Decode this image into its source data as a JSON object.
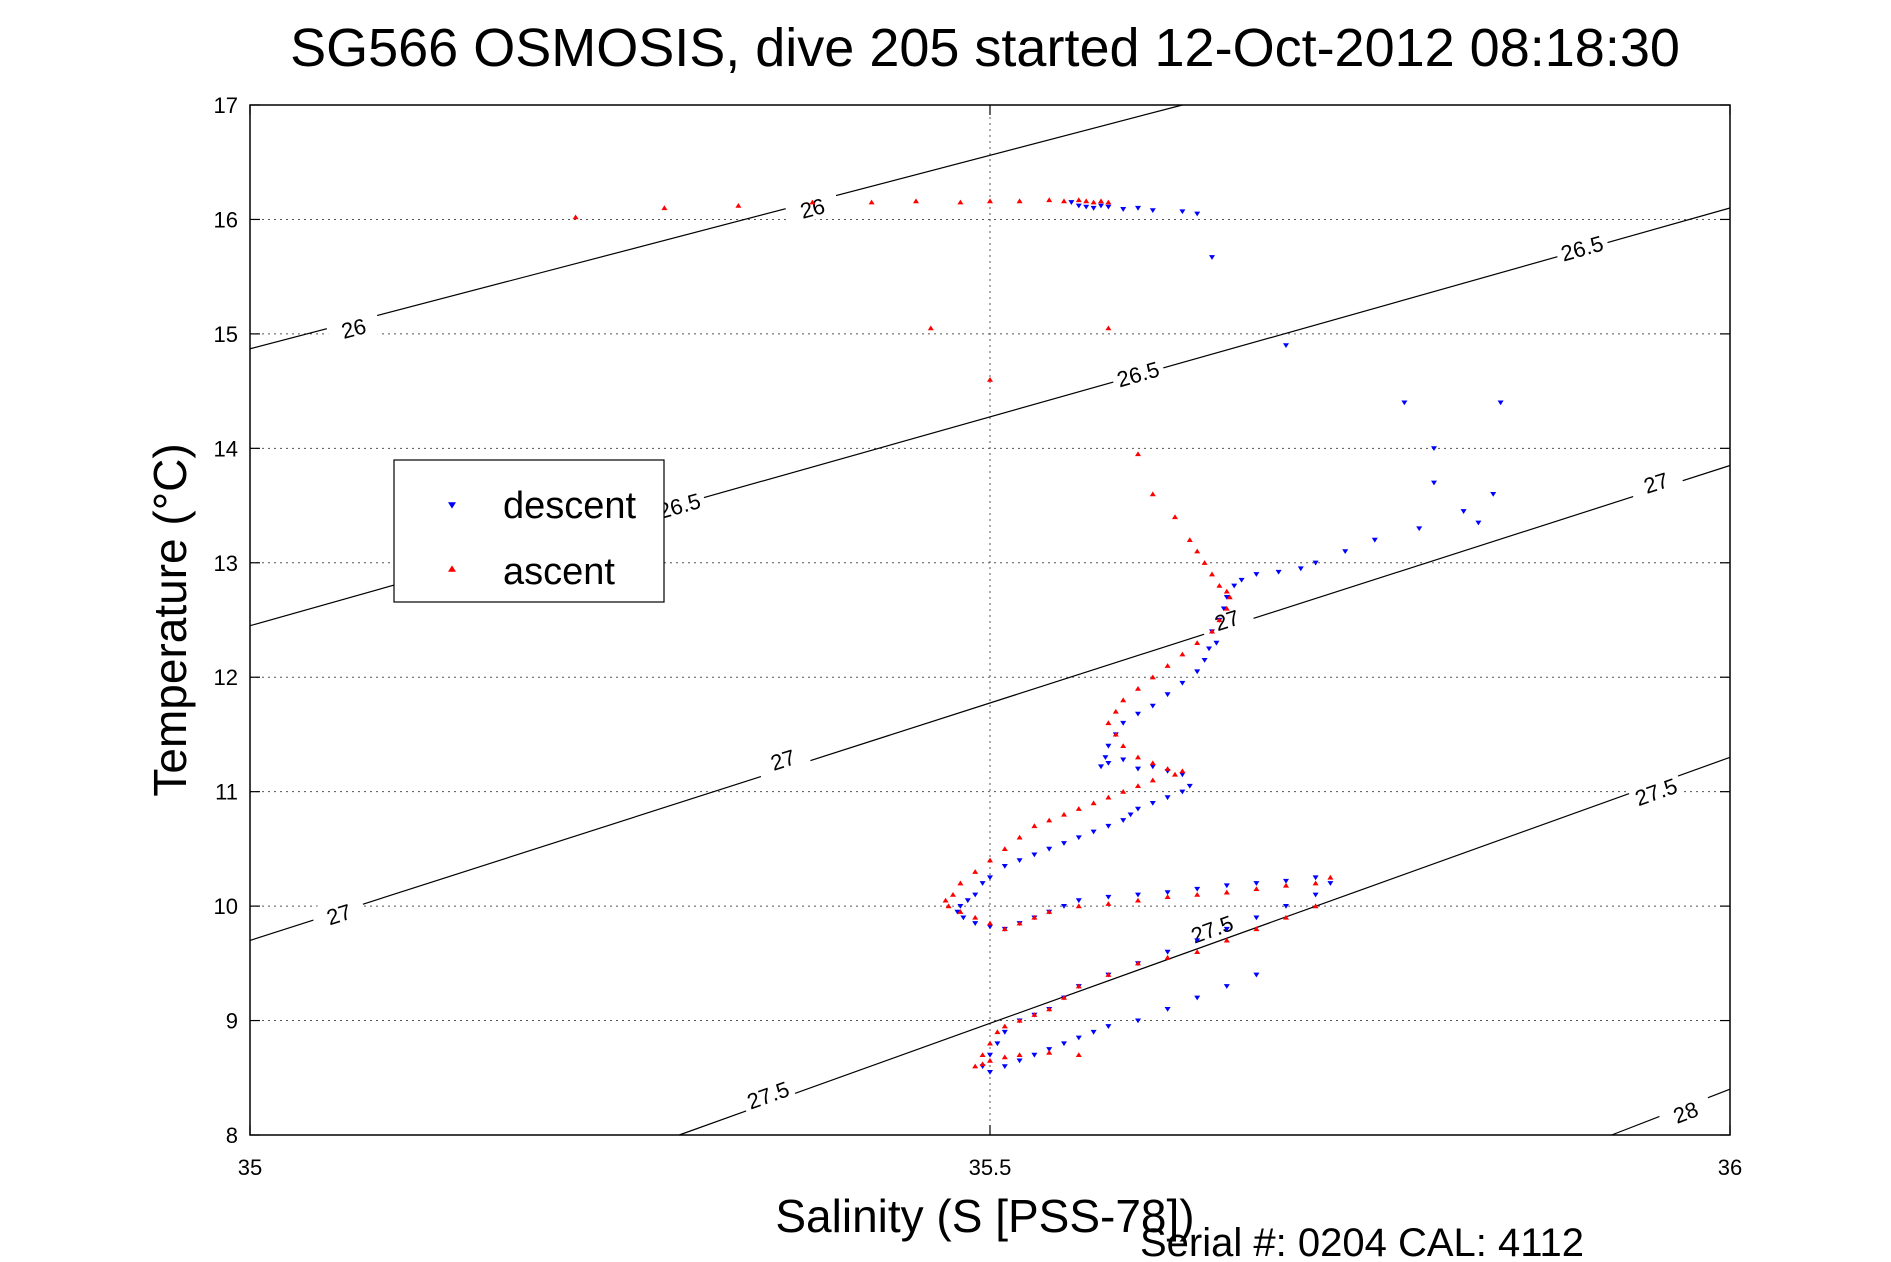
{
  "chart_data": {
    "type": "scatter",
    "title": "SG566 OSMOSIS, dive 205 started 12-Oct-2012 08:18:30",
    "xlabel": "Salinity (S [PSS-78])",
    "ylabel": "Temperature (°C)",
    "xlim": [
      35,
      36
    ],
    "ylim": [
      8,
      17
    ],
    "x_ticks": [
      "35",
      "35.5",
      "36"
    ],
    "y_ticks": [
      "8",
      "9",
      "10",
      "11",
      "12",
      "13",
      "14",
      "15",
      "16",
      "17"
    ],
    "grid": "dotted",
    "legend_position": "left",
    "footer": "Serial #: 0204  CAL: 4112",
    "density_contours": [
      {
        "label": "26",
        "line": [
          [
            35.0,
            14.87
          ],
          [
            35.63,
            17.0
          ]
        ],
        "label_at": [
          [
            35.07,
            15.05
          ],
          [
            35.38,
            16.1
          ]
        ]
      },
      {
        "label": "26.5",
        "line": [
          [
            35.0,
            12.45
          ],
          [
            36.0,
            16.1
          ]
        ],
        "label_at": [
          [
            35.29,
            13.5
          ],
          [
            35.6,
            14.65
          ],
          [
            35.9,
            15.75
          ]
        ]
      },
      {
        "label": "27",
        "line": [
          [
            35.0,
            9.7
          ],
          [
            36.0,
            13.85
          ]
        ],
        "label_at": [
          [
            35.06,
            9.93
          ],
          [
            35.36,
            11.28
          ],
          [
            35.66,
            12.5
          ],
          [
            35.95,
            13.7
          ]
        ]
      },
      {
        "label": "27.5",
        "line": [
          [
            35.29,
            8.0
          ],
          [
            36.0,
            11.3
          ]
        ],
        "label_at": [
          [
            35.35,
            8.35
          ],
          [
            35.65,
            9.8
          ],
          [
            35.95,
            11.0
          ]
        ]
      },
      {
        "label": "28",
        "line": [
          [
            35.92,
            8.0
          ],
          [
            36.0,
            8.4
          ]
        ],
        "label_at": [
          [
            35.97,
            8.2
          ]
        ]
      }
    ],
    "series": [
      {
        "name": "descent",
        "color": "#0000ff",
        "marker": "triangle-down",
        "x": [
          35.555,
          35.56,
          35.565,
          35.57,
          35.575,
          35.58,
          35.59,
          35.6,
          35.61,
          35.63,
          35.64,
          35.65,
          35.7,
          35.78,
          35.8,
          35.82,
          35.83,
          35.84,
          35.845,
          35.8,
          35.79,
          35.76,
          35.74,
          35.72,
          35.71,
          35.695,
          35.68,
          35.67,
          35.665,
          35.66,
          35.658,
          35.655,
          35.65,
          35.653,
          35.648,
          35.645,
          35.64,
          35.63,
          35.62,
          35.61,
          35.6,
          35.59,
          35.585,
          35.58,
          35.578,
          35.575,
          35.58,
          35.59,
          35.6,
          35.61,
          35.62,
          35.63,
          35.635,
          35.63,
          35.62,
          35.61,
          35.6,
          35.595,
          35.59,
          35.58,
          35.57,
          35.56,
          35.55,
          35.54,
          35.53,
          35.52,
          35.51,
          35.5,
          35.495,
          35.49,
          35.485,
          35.48,
          35.478,
          35.482,
          35.49,
          35.5,
          35.51,
          35.52,
          35.53,
          35.54,
          35.55,
          35.56,
          35.58,
          35.6,
          35.62,
          35.64,
          35.66,
          35.68,
          35.7,
          35.72,
          35.73,
          35.72,
          35.7,
          35.68,
          35.66,
          35.64,
          35.62,
          35.6,
          35.58,
          35.56,
          35.55,
          35.54,
          35.53,
          35.52,
          35.51,
          35.505,
          35.5,
          35.495,
          35.5,
          35.51,
          35.52,
          35.53,
          35.54,
          35.55,
          35.56,
          35.57,
          35.58,
          35.6,
          35.62,
          35.64,
          35.66,
          35.68
        ],
        "y": [
          16.15,
          16.12,
          16.11,
          16.1,
          16.12,
          16.11,
          16.09,
          16.1,
          16.08,
          16.07,
          16.05,
          15.67,
          14.9,
          14.4,
          13.7,
          13.45,
          13.35,
          13.6,
          14.4,
          14.0,
          13.3,
          13.2,
          13.1,
          13.0,
          12.95,
          12.92,
          12.9,
          12.85,
          12.8,
          12.7,
          12.6,
          12.5,
          12.4,
          12.3,
          12.25,
          12.15,
          12.05,
          11.95,
          11.85,
          11.75,
          11.68,
          11.6,
          11.5,
          11.4,
          11.3,
          11.22,
          11.25,
          11.28,
          11.2,
          11.22,
          11.18,
          11.15,
          11.05,
          11.0,
          10.95,
          10.9,
          10.85,
          10.8,
          10.75,
          10.7,
          10.65,
          10.6,
          10.55,
          10.5,
          10.45,
          10.4,
          10.35,
          10.25,
          10.2,
          10.1,
          10.05,
          10.0,
          9.95,
          9.9,
          9.85,
          9.82,
          9.8,
          9.85,
          9.9,
          9.95,
          10.0,
          10.05,
          10.08,
          10.1,
          10.12,
          10.15,
          10.18,
          10.2,
          10.22,
          10.25,
          10.2,
          10.1,
          10.0,
          9.9,
          9.8,
          9.7,
          9.6,
          9.5,
          9.4,
          9.3,
          9.2,
          9.1,
          9.05,
          9.0,
          8.9,
          8.8,
          8.7,
          8.6,
          8.55,
          8.6,
          8.65,
          8.7,
          8.75,
          8.8,
          8.85,
          8.9,
          8.95,
          9.0,
          9.1,
          9.2,
          9.3,
          9.4
        ]
      },
      {
        "name": "ascent",
        "color": "#ff0000",
        "marker": "triangle-up",
        "x": [
          35.22,
          35.28,
          35.33,
          35.38,
          35.42,
          35.45,
          35.48,
          35.5,
          35.52,
          35.54,
          35.55,
          35.56,
          35.565,
          35.57,
          35.575,
          35.58,
          35.58,
          35.46,
          35.5,
          35.6,
          35.61,
          35.625,
          35.635,
          35.64,
          35.645,
          35.65,
          35.655,
          35.66,
          35.662,
          35.66,
          35.655,
          35.65,
          35.64,
          35.63,
          35.62,
          35.61,
          35.6,
          35.59,
          35.585,
          35.58,
          35.585,
          35.59,
          35.6,
          35.61,
          35.62,
          35.63,
          35.625,
          35.61,
          35.6,
          35.59,
          35.58,
          35.57,
          35.56,
          35.55,
          35.54,
          35.53,
          35.52,
          35.51,
          35.5,
          35.49,
          35.48,
          35.475,
          35.47,
          35.472,
          35.48,
          35.49,
          35.5,
          35.51,
          35.52,
          35.53,
          35.54,
          35.56,
          35.58,
          35.6,
          35.62,
          35.64,
          35.66,
          35.68,
          35.7,
          35.72,
          35.73,
          35.72,
          35.7,
          35.68,
          35.66,
          35.64,
          35.62,
          35.6,
          35.58,
          35.56,
          35.55,
          35.54,
          35.53,
          35.52,
          35.51,
          35.505,
          35.5,
          35.495,
          35.49,
          35.495,
          35.5,
          35.51,
          35.52,
          35.54,
          35.56
        ],
        "y": [
          16.02,
          16.1,
          16.12,
          16.15,
          16.15,
          16.16,
          16.15,
          16.16,
          16.16,
          16.17,
          16.16,
          16.17,
          16.16,
          16.15,
          16.16,
          16.15,
          15.05,
          15.05,
          14.6,
          13.95,
          13.6,
          13.4,
          13.2,
          13.1,
          13.0,
          12.9,
          12.8,
          12.75,
          12.7,
          12.6,
          12.5,
          12.4,
          12.3,
          12.2,
          12.1,
          12.0,
          11.9,
          11.8,
          11.7,
          11.6,
          11.5,
          11.4,
          11.3,
          11.25,
          11.2,
          11.18,
          11.15,
          11.1,
          11.05,
          11.0,
          10.95,
          10.9,
          10.85,
          10.8,
          10.75,
          10.7,
          10.6,
          10.5,
          10.4,
          10.3,
          10.2,
          10.1,
          10.05,
          10.0,
          9.95,
          9.9,
          9.85,
          9.8,
          9.85,
          9.9,
          9.95,
          10.0,
          10.02,
          10.05,
          10.08,
          10.1,
          10.12,
          10.15,
          10.18,
          10.2,
          10.25,
          10.0,
          9.9,
          9.8,
          9.7,
          9.6,
          9.55,
          9.5,
          9.4,
          9.3,
          9.2,
          9.1,
          9.05,
          9.0,
          8.95,
          8.9,
          8.8,
          8.7,
          8.6,
          8.62,
          8.65,
          8.68,
          8.7,
          8.72,
          8.7
        ]
      }
    ]
  }
}
